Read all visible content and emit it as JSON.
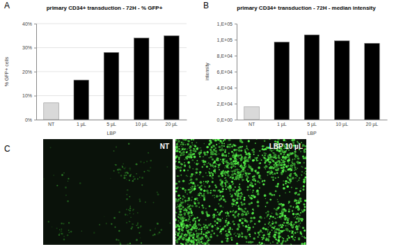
{
  "chart_data": [
    {
      "type": "bar",
      "panel": "A",
      "title": "primary CD34+ transduction - 72H - % GFP+",
      "x_label": "LBP",
      "y_label": "% GFP+ cells",
      "categories": [
        "NT",
        "1 µL",
        "5 µL",
        "10 µL",
        "20 µL"
      ],
      "values": [
        7,
        16.5,
        28,
        34,
        35
      ],
      "colors": [
        "#d9d9d9",
        "#000000",
        "#000000",
        "#000000",
        "#000000"
      ],
      "ylim": [
        0,
        40
      ],
      "yticks": [
        {
          "value": 0,
          "label": "0%"
        },
        {
          "value": 10,
          "label": "10%"
        },
        {
          "value": 20,
          "label": "20%"
        },
        {
          "value": 30,
          "label": "30%"
        },
        {
          "value": 40,
          "label": "40%"
        }
      ],
      "grid": true
    },
    {
      "type": "bar",
      "panel": "B",
      "title": "primary CD34+ transduction - 72H - median intensity",
      "x_label": "LBP",
      "y_label": "intensity",
      "categories": [
        "NT",
        "1 µL",
        "5 µL",
        "10 µL",
        "20 µL"
      ],
      "values": [
        16000,
        97000,
        106000,
        98500,
        95500
      ],
      "colors": [
        "#d9d9d9",
        "#000000",
        "#000000",
        "#000000",
        "#000000"
      ],
      "ylim": [
        0,
        120000
      ],
      "yticks": [
        {
          "value": 0,
          "label": "0,E+00"
        },
        {
          "value": 20000,
          "label": "2,E+04"
        },
        {
          "value": 40000,
          "label": "4,E+04"
        },
        {
          "value": 60000,
          "label": "6,E+04"
        },
        {
          "value": 80000,
          "label": "8,E+04"
        },
        {
          "value": 100000,
          "label": "1,E+05"
        },
        {
          "value": 120000,
          "label": "1,E+05"
        }
      ],
      "grid": false
    }
  ],
  "micrographs": {
    "panel": "C",
    "images": [
      {
        "caption": "NT"
      },
      {
        "caption": "LBP 10 µL"
      }
    ]
  }
}
